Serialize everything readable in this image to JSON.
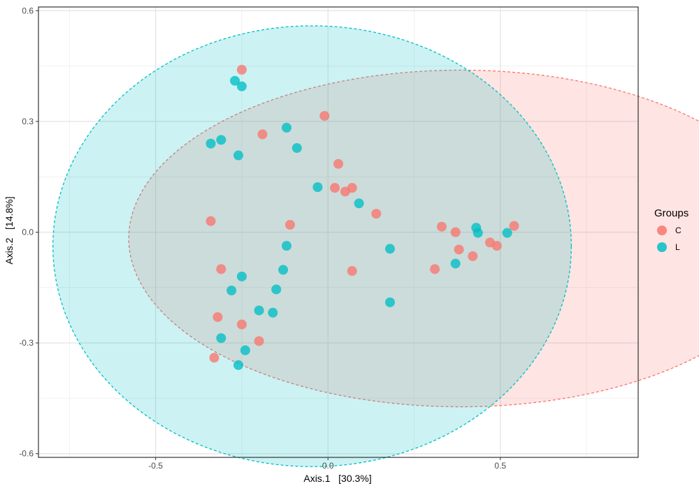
{
  "chart_data": {
    "type": "scatter",
    "xlabel": "Axis.1   [30.3%]",
    "ylabel": "Axis.2   [14.8%]",
    "xlim": [
      -0.84,
      0.9
    ],
    "ylim": [
      -0.61,
      0.61
    ],
    "x_ticks": [
      {
        "value": -0.5,
        "label": "-0.5"
      },
      {
        "value": 0.0,
        "label": "0.0"
      },
      {
        "value": 0.5,
        "label": "0.5"
      }
    ],
    "y_ticks": [
      {
        "value": 0.6,
        "label": "0.6"
      },
      {
        "value": 0.3,
        "label": "0.3"
      },
      {
        "value": 0.0,
        "label": "0.0"
      },
      {
        "value": -0.3,
        "label": "-0.3"
      },
      {
        "value": -0.6,
        "label": "-0.6"
      }
    ],
    "grid": true,
    "legend": {
      "title": "Groups",
      "position": "right",
      "entries": [
        {
          "label": "C",
          "color": "#F8766D"
        },
        {
          "label": "L",
          "color": "#00BFC4"
        }
      ]
    },
    "ellipses": [
      {
        "group": "C",
        "center": [
          0.385,
          -0.017
        ],
        "radii": [
          0.963,
          0.456
        ],
        "fill": "#F8766D"
      },
      {
        "group": "L",
        "center": [
          -0.046,
          -0.038
        ],
        "radii": [
          0.752,
          0.597
        ],
        "fill": "#00BFC4"
      }
    ],
    "series": [
      {
        "name": "C",
        "color": "#F8766D",
        "points": [
          [
            -0.25,
            0.44
          ],
          [
            -0.19,
            0.265
          ],
          [
            -0.01,
            0.315
          ],
          [
            0.03,
            0.185
          ],
          [
            0.02,
            0.12
          ],
          [
            0.05,
            0.11
          ],
          [
            0.07,
            0.12
          ],
          [
            0.14,
            0.05
          ],
          [
            -0.34,
            0.03
          ],
          [
            -0.11,
            0.02
          ],
          [
            -0.31,
            -0.1
          ],
          [
            0.07,
            -0.105
          ],
          [
            -0.32,
            -0.23
          ],
          [
            -0.25,
            -0.25
          ],
          [
            -0.2,
            -0.295
          ],
          [
            -0.33,
            -0.34
          ],
          [
            0.33,
            0.015
          ],
          [
            0.37,
            0.0
          ],
          [
            0.38,
            -0.047
          ],
          [
            0.42,
            -0.065
          ],
          [
            0.47,
            -0.028
          ],
          [
            0.49,
            -0.037
          ],
          [
            0.54,
            0.017
          ],
          [
            0.31,
            -0.1
          ]
        ]
      },
      {
        "name": "L",
        "color": "#00BFC4",
        "points": [
          [
            -0.27,
            0.41
          ],
          [
            -0.25,
            0.395
          ],
          [
            -0.34,
            0.24
          ],
          [
            -0.31,
            0.25
          ],
          [
            -0.26,
            0.208
          ],
          [
            -0.12,
            0.283
          ],
          [
            -0.09,
            0.228
          ],
          [
            -0.03,
            0.122
          ],
          [
            0.09,
            0.078
          ],
          [
            -0.12,
            -0.037
          ],
          [
            -0.13,
            -0.102
          ],
          [
            -0.25,
            -0.12
          ],
          [
            -0.28,
            -0.158
          ],
          [
            -0.15,
            -0.155
          ],
          [
            -0.2,
            -0.212
          ],
          [
            -0.16,
            -0.218
          ],
          [
            -0.31,
            -0.287
          ],
          [
            -0.24,
            -0.32
          ],
          [
            -0.26,
            -0.36
          ],
          [
            0.18,
            -0.045
          ],
          [
            0.18,
            -0.19
          ],
          [
            0.37,
            -0.085
          ],
          [
            0.43,
            0.012
          ],
          [
            0.435,
            -0.002
          ],
          [
            0.52,
            -0.002
          ]
        ]
      }
    ]
  }
}
